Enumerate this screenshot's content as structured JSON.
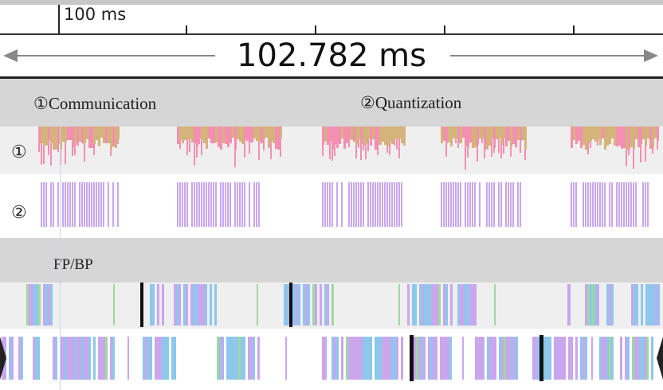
{
  "ruler": {
    "label": "100 ms"
  },
  "measure": {
    "duration": "102.782 ms"
  },
  "section_top": {
    "communication_label": "①Communication",
    "quantization_label": "②Quantization"
  },
  "tracks": {
    "track1_label": "①",
    "track2_label": "②"
  },
  "section_bottom": {
    "label": "FP/BP"
  },
  "colors": {
    "pink": "#f48fb1",
    "khaki": "#d4b47a",
    "lavender": "#c9a6ee",
    "blue": "#8ec7ec",
    "green": "#9fd8a0",
    "black": "#111111"
  }
}
